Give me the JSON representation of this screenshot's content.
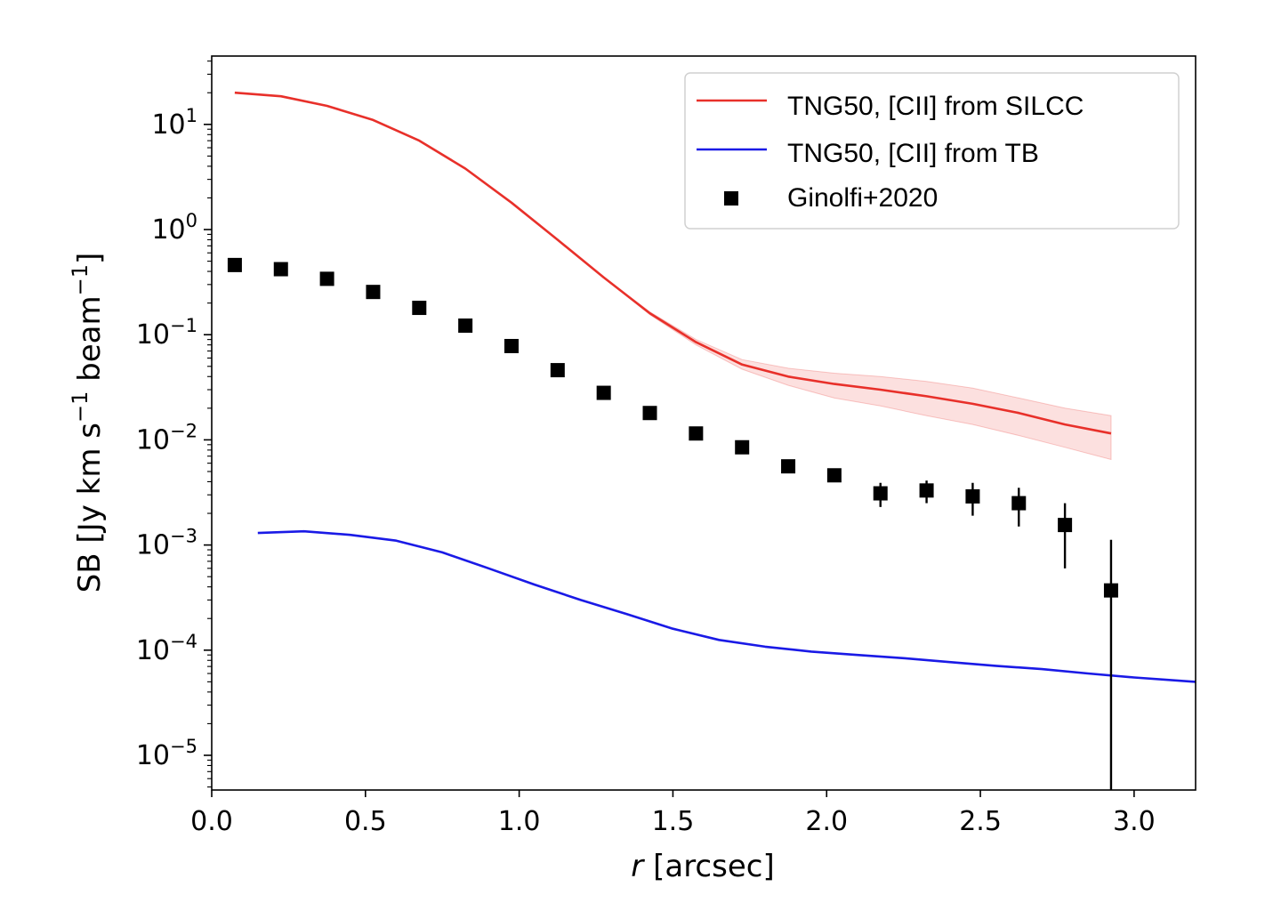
{
  "chart_data": {
    "type": "line",
    "title": "",
    "xlabel_var": "r",
    "xlabel_unit": " [arcsec]",
    "ylabel": "SB [Jy km s",
    "ylabel_sup1": "−1",
    "ylabel_mid": " beam",
    "ylabel_sup2": "−1",
    "ylabel_end": "]",
    "xlim": [
      0.0,
      3.2
    ],
    "ylim_log10": [
      -5.33,
      1.65
    ],
    "yscale": "log",
    "grid": false,
    "legend_placement": "top-right",
    "xticks": [
      "0.0",
      "0.5",
      "1.0",
      "1.5",
      "2.0",
      "2.5",
      "3.0"
    ],
    "xtick_values": [
      0.0,
      0.5,
      1.0,
      1.5,
      2.0,
      2.5,
      3.0
    ],
    "ytick_exponents": [
      "1",
      "0",
      "−1",
      "−2",
      "−3",
      "−4",
      "−5"
    ],
    "ytick_values_log10": [
      1,
      0,
      -1,
      -2,
      -3,
      -4,
      -5
    ],
    "ytick_base": "10",
    "series": [
      {
        "name": "TNG50, [CII] from SILCC",
        "color": "#e8302a",
        "kind": "line",
        "x": [
          0.075,
          0.225,
          0.375,
          0.525,
          0.675,
          0.825,
          0.975,
          1.125,
          1.275,
          1.425,
          1.575,
          1.725,
          1.875,
          2.025,
          2.175,
          2.325,
          2.475,
          2.625,
          2.775,
          2.925
        ],
        "y": [
          20.0,
          18.5,
          15.0,
          11.0,
          7.0,
          3.8,
          1.8,
          0.8,
          0.35,
          0.16,
          0.085,
          0.052,
          0.04,
          0.034,
          0.03,
          0.026,
          0.022,
          0.018,
          0.014,
          0.0115
        ],
        "band_upper": [
          20.0,
          18.5,
          15.0,
          11.0,
          7.0,
          3.8,
          1.8,
          0.8,
          0.35,
          0.165,
          0.09,
          0.058,
          0.048,
          0.043,
          0.04,
          0.036,
          0.031,
          0.025,
          0.02,
          0.017
        ],
        "band_lower": [
          20.0,
          18.5,
          15.0,
          11.0,
          7.0,
          3.8,
          1.8,
          0.8,
          0.35,
          0.155,
          0.08,
          0.047,
          0.033,
          0.025,
          0.021,
          0.017,
          0.014,
          0.011,
          0.0085,
          0.0065
        ]
      },
      {
        "name": "TNG50, [CII] from TB",
        "color": "#1a1ae6",
        "kind": "line",
        "x": [
          0.15,
          0.3,
          0.45,
          0.6,
          0.75,
          0.9,
          1.05,
          1.2,
          1.35,
          1.5,
          1.65,
          1.8,
          1.95,
          2.1,
          2.25,
          2.4,
          2.55,
          2.7,
          2.85,
          3.0,
          3.2
        ],
        "y": [
          0.0013,
          0.00135,
          0.00125,
          0.0011,
          0.00085,
          0.0006,
          0.00042,
          0.0003,
          0.00022,
          0.00016,
          0.000125,
          0.000108,
          9.7e-05,
          9e-05,
          8.4e-05,
          7.7e-05,
          7.1e-05,
          6.6e-05,
          6e-05,
          5.5e-05,
          5e-05
        ]
      },
      {
        "name": "Ginolfi+2020",
        "color": "#000000",
        "kind": "scatter",
        "marker": "square",
        "x": [
          0.075,
          0.225,
          0.375,
          0.525,
          0.675,
          0.825,
          0.975,
          1.125,
          1.275,
          1.425,
          1.575,
          1.725,
          1.875,
          2.025,
          2.175,
          2.325,
          2.475,
          2.625,
          2.775,
          2.925
        ],
        "y": [
          0.46,
          0.42,
          0.34,
          0.255,
          0.18,
          0.122,
          0.078,
          0.046,
          0.028,
          0.018,
          0.0115,
          0.0085,
          0.0056,
          0.0046,
          0.0031,
          0.0033,
          0.0029,
          0.0025,
          0.00155,
          0.00037
        ],
        "err_low": [
          0,
          0,
          0,
          0,
          0,
          0,
          0,
          0,
          0,
          0,
          0,
          0,
          0,
          0,
          0.0008,
          0.0008,
          0.001,
          0.001,
          0.00095,
          0.00037
        ],
        "err_high": [
          0,
          0,
          0,
          0,
          0,
          0,
          0,
          0,
          0,
          0,
          0,
          0,
          0,
          0,
          0.0008,
          0.0008,
          0.001,
          0.001,
          0.00095,
          0.00075
        ]
      }
    ]
  }
}
